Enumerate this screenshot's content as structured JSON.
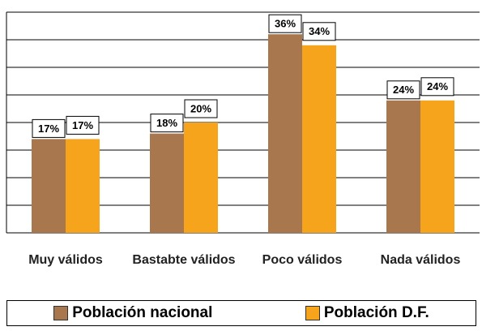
{
  "chart_data": {
    "type": "bar",
    "categories": [
      "Muy válidos",
      "Bastabte válidos",
      "Poco válidos",
      "Nada válidos"
    ],
    "series": [
      {
        "name": "Población nacional",
        "color": "#a8774d",
        "values": [
          17,
          18,
          36,
          24
        ],
        "value_labels": [
          "17%",
          "18%",
          "36%",
          "24%"
        ]
      },
      {
        "name": "Población D.F.",
        "color": "#f7a41d",
        "values": [
          17,
          20,
          34,
          24
        ],
        "value_labels": [
          "17%",
          "20%",
          "34%",
          "24%"
        ]
      }
    ],
    "ylim": [
      0,
      40
    ],
    "yticks": [
      0,
      5,
      10,
      15,
      20,
      25,
      30,
      35,
      40
    ],
    "grid": true
  }
}
